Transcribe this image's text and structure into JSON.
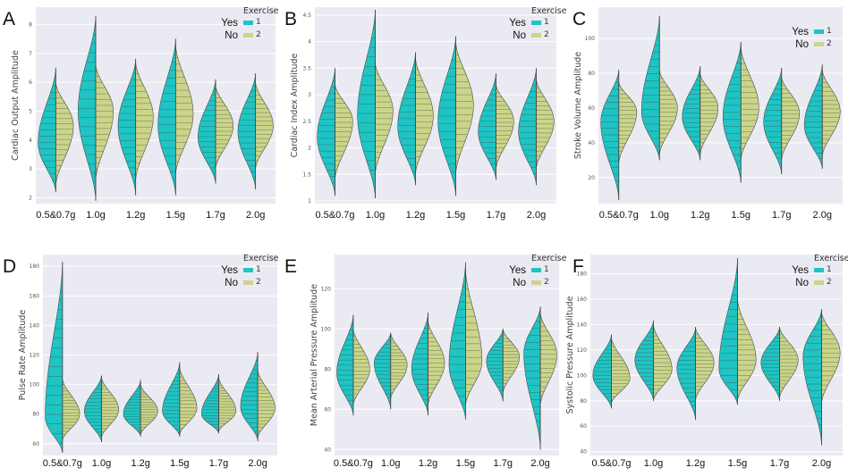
{
  "chart_data": [
    {
      "panel": "A",
      "type": "violin",
      "ylabel": "Cardiac Output Amplitude",
      "ylim": [
        1.8,
        8.6
      ],
      "yticks": [
        2,
        3,
        4,
        5,
        6,
        7,
        8
      ],
      "categories": [
        "0.5&0.7g",
        "1.0g",
        "1.2g",
        "1.5g",
        "1.7g",
        "2.0g"
      ],
      "legend": {
        "title": "Exercise",
        "entries": [
          {
            "word": "Yes",
            "code": "1",
            "color": "#1fc4c4"
          },
          {
            "word": "No",
            "code": "2",
            "color": "#cbd48a"
          }
        ]
      },
      "series": [
        {
          "name": "Yes",
          "min": [
            2.2,
            1.9,
            2.1,
            2.1,
            2.5,
            2.3
          ],
          "max": [
            6.5,
            8.3,
            6.8,
            7.5,
            6.1,
            6.3
          ],
          "mode": [
            3.9,
            5.0,
            4.5,
            4.5,
            4.1,
            4.3
          ]
        },
        {
          "name": "No",
          "min": [
            2.4,
            2.6,
            2.6,
            2.8,
            3.0,
            3.0
          ],
          "max": [
            6.0,
            6.6,
            6.7,
            7.3,
            5.9,
            6.0
          ],
          "mode": [
            4.5,
            5.0,
            4.8,
            4.9,
            4.5,
            4.5
          ]
        }
      ]
    },
    {
      "panel": "B",
      "type": "violin",
      "ylabel": "Cardiac Index Amplitude",
      "ylim": [
        0.95,
        4.65
      ],
      "yticks": [
        1.0,
        1.5,
        2.0,
        2.5,
        3.0,
        3.5,
        4.0,
        4.5
      ],
      "categories": [
        "0.5&0.7g",
        "1.0g",
        "1.2g",
        "1.5g",
        "1.7g",
        "2.0g"
      ],
      "legend": {
        "title": "Exercise",
        "entries": [
          {
            "word": "Yes",
            "code": "1",
            "color": "#1fc4c4"
          },
          {
            "word": "No",
            "code": "2",
            "color": "#cbd48a"
          }
        ]
      },
      "series": [
        {
          "name": "Yes",
          "min": [
            1.1,
            1.05,
            1.3,
            1.1,
            1.4,
            1.3
          ],
          "max": [
            3.5,
            4.6,
            3.8,
            4.1,
            3.4,
            3.5
          ],
          "mode": [
            2.2,
            2.6,
            2.4,
            2.5,
            2.3,
            2.3
          ]
        },
        {
          "name": "No",
          "min": [
            1.4,
            1.5,
            1.5,
            1.5,
            1.6,
            1.6
          ],
          "max": [
            3.2,
            3.6,
            3.7,
            4.0,
            3.2,
            3.3
          ],
          "mode": [
            2.5,
            2.7,
            2.6,
            2.8,
            2.5,
            2.5
          ]
        }
      ]
    },
    {
      "panel": "C",
      "type": "violin",
      "ylabel": "Stroke Volume Amplitude",
      "ylim": [
        5,
        118
      ],
      "yticks": [
        20,
        40,
        60,
        80,
        100
      ],
      "categories": [
        "0.5&0.7g",
        "1.0g",
        "1.2g",
        "1.5g",
        "1.7g",
        "2.0g"
      ],
      "legend": {
        "title": "",
        "entries": [
          {
            "word": "Yes",
            "code": "1",
            "color": "#1fc4c4"
          },
          {
            "word": "No",
            "code": "2",
            "color": "#cbd48a"
          }
        ]
      },
      "series": [
        {
          "name": "Yes",
          "min": [
            7,
            30,
            30,
            17,
            22,
            25
          ],
          "max": [
            82,
            113,
            84,
            98,
            83,
            85
          ],
          "mode": [
            52,
            58,
            55,
            55,
            52,
            50
          ]
        },
        {
          "name": "No",
          "min": [
            28,
            33,
            33,
            30,
            30,
            32
          ],
          "max": [
            75,
            82,
            80,
            95,
            78,
            82
          ],
          "mode": [
            58,
            60,
            60,
            60,
            57,
            58
          ]
        }
      ]
    },
    {
      "panel": "D",
      "type": "violin",
      "ylabel": "Pulse Rate Amplitude",
      "ylim": [
        52,
        188
      ],
      "yticks": [
        60,
        80,
        100,
        120,
        140,
        160,
        180
      ],
      "categories": [
        "0.5&0.7g",
        "1.0g",
        "1.2g",
        "1.5g",
        "1.7g",
        "2.0g"
      ],
      "legend": {
        "title": "Exercise",
        "entries": [
          {
            "word": "Yes",
            "code": "1",
            "color": "#1fc4c4"
          },
          {
            "word": "No",
            "code": "2",
            "color": "#cbd48a"
          }
        ]
      },
      "series": [
        {
          "name": "Yes",
          "min": [
            54,
            61,
            65,
            65,
            67,
            62
          ],
          "max": [
            183,
            106,
            103,
            115,
            107,
            122
          ],
          "mode": [
            78,
            82,
            80,
            82,
            80,
            85
          ]
        },
        {
          "name": "No",
          "min": [
            62,
            64,
            66,
            66,
            68,
            64
          ],
          "max": [
            104,
            105,
            100,
            112,
            105,
            110
          ],
          "mode": [
            80,
            83,
            82,
            84,
            82,
            84
          ]
        }
      ]
    },
    {
      "panel": "E",
      "type": "violin",
      "ylabel": "Mean Arterial Pressure Amplitude",
      "ylim": [
        37,
        137
      ],
      "yticks": [
        40,
        60,
        80,
        100,
        120
      ],
      "categories": [
        "0.5&0.7g",
        "1.0g",
        "1.2g",
        "1.5g",
        "1.7g",
        "2.0g"
      ],
      "legend": {
        "title": "Exercise",
        "entries": [
          {
            "word": "Yes",
            "code": "1",
            "color": "#1fc4c4"
          },
          {
            "word": "No",
            "code": "2",
            "color": "#cbd48a"
          }
        ]
      },
      "series": [
        {
          "name": "Yes",
          "min": [
            57,
            60,
            57,
            55,
            64,
            40
          ],
          "max": [
            107,
            98,
            108,
            133,
            100,
            111
          ],
          "mode": [
            78,
            83,
            80,
            82,
            84,
            88
          ]
        },
        {
          "name": "No",
          "min": [
            62,
            65,
            62,
            62,
            68,
            62
          ],
          "max": [
            100,
            98,
            104,
            130,
            100,
            108
          ],
          "mode": [
            80,
            82,
            83,
            84,
            86,
            87
          ]
        }
      ]
    },
    {
      "panel": "F",
      "type": "violin",
      "ylabel": "Systolic Pressure Amplitude",
      "ylim": [
        37,
        195
      ],
      "yticks": [
        40,
        60,
        80,
        100,
        120,
        140,
        160,
        180
      ],
      "categories": [
        "0.5&0.7g",
        "1.0g",
        "1.2g",
        "1.5g",
        "1.7g",
        "2.0g"
      ],
      "legend": {
        "title": "Exercise",
        "entries": [
          {
            "word": "Yes",
            "code": "1",
            "color": "#1fc4c4"
          },
          {
            "word": "No",
            "code": "2",
            "color": "#cbd48a"
          }
        ]
      },
      "series": [
        {
          "name": "Yes",
          "min": [
            74,
            80,
            65,
            77,
            80,
            45
          ],
          "max": [
            132,
            143,
            137,
            192,
            138,
            152
          ],
          "mode": [
            100,
            112,
            106,
            105,
            110,
            115
          ]
        },
        {
          "name": "No",
          "min": [
            78,
            80,
            80,
            80,
            82,
            78
          ],
          "max": [
            130,
            140,
            138,
            160,
            138,
            150
          ],
          "mode": [
            98,
            105,
            110,
            112,
            112,
            118
          ]
        }
      ]
    }
  ]
}
